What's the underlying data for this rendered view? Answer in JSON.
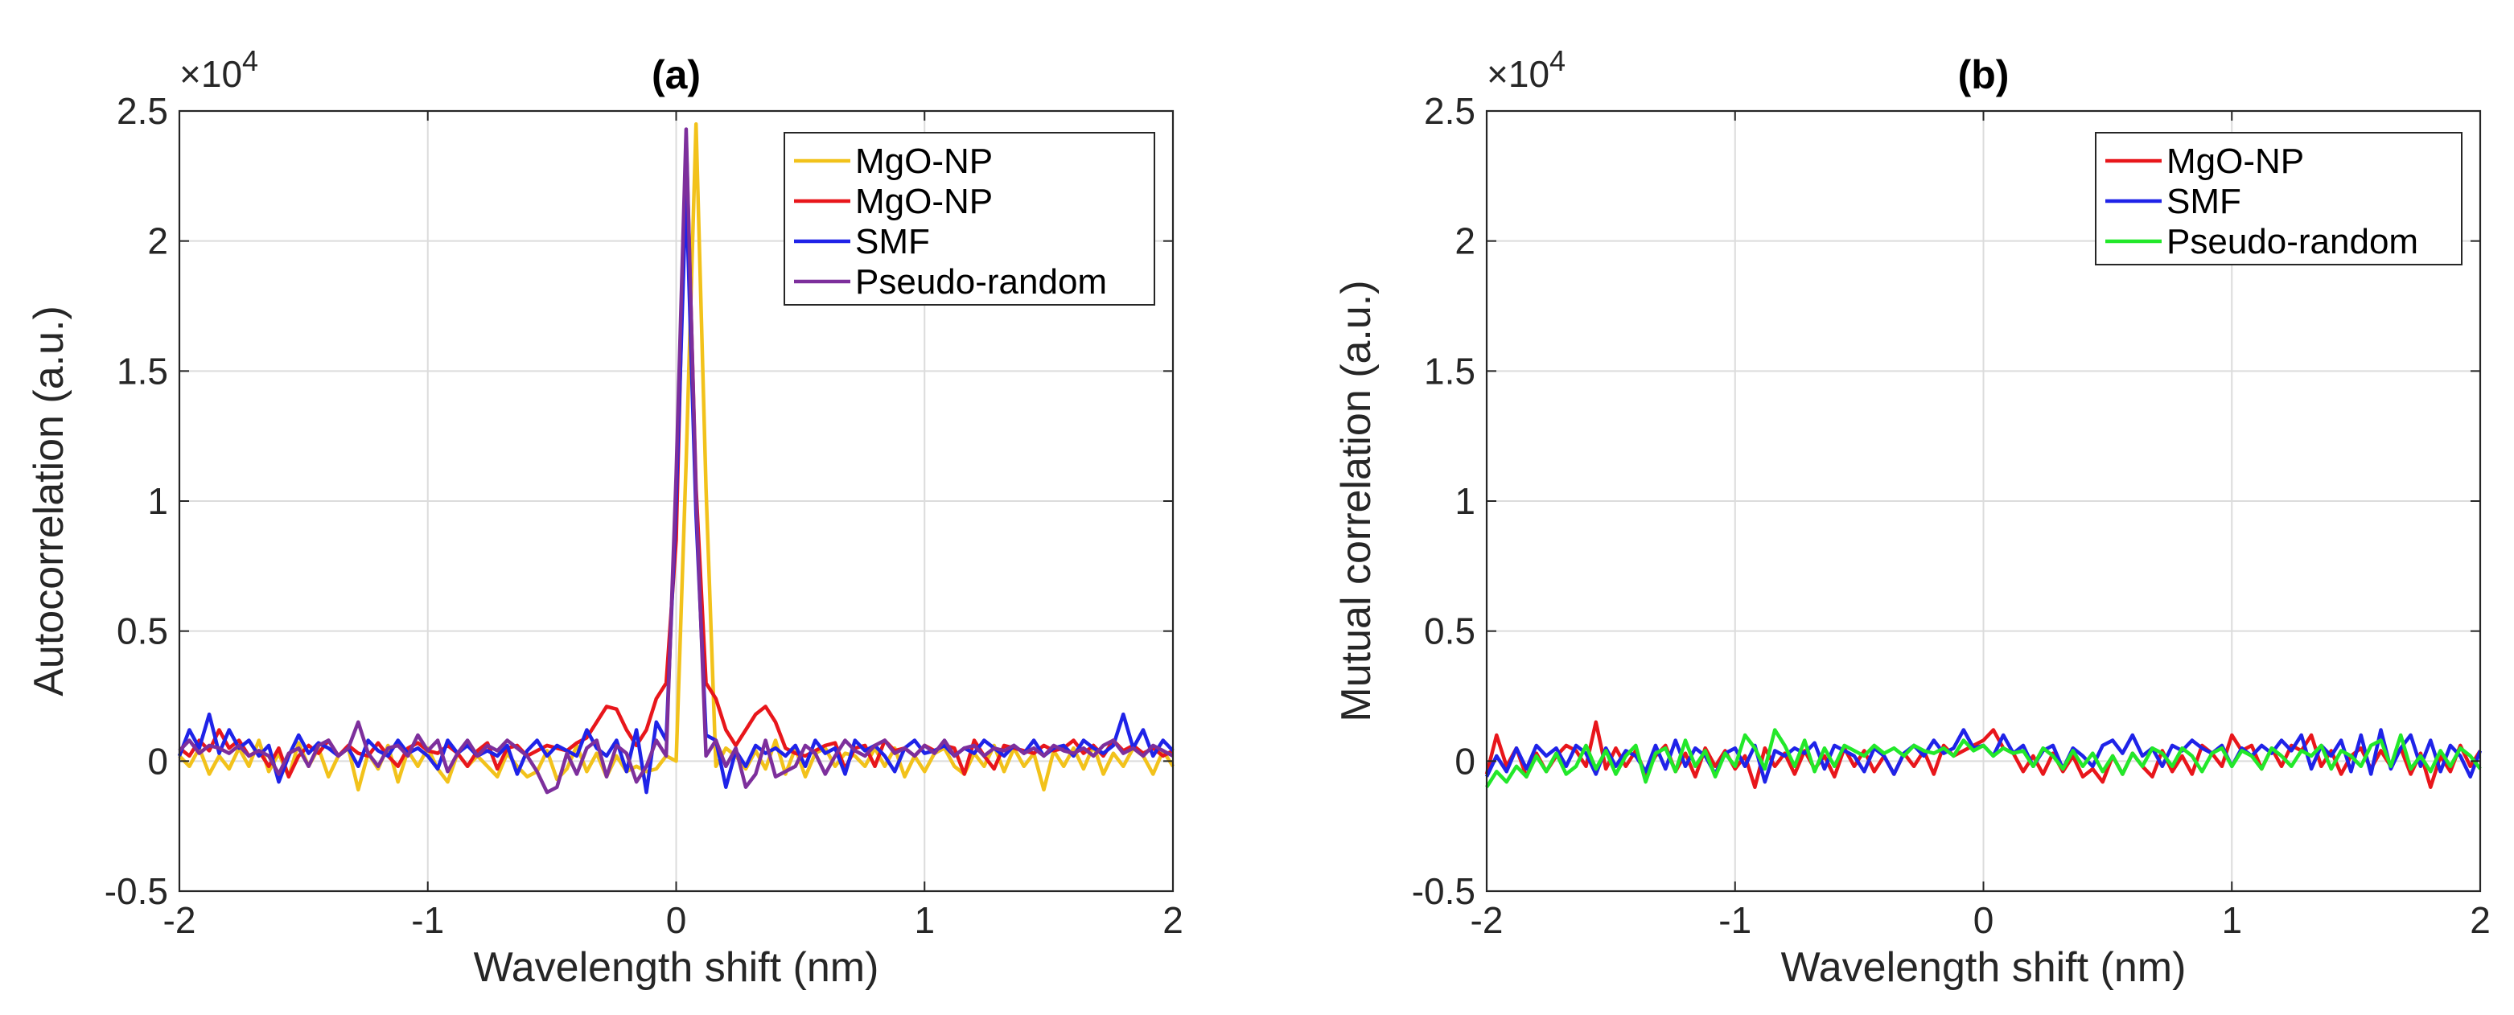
{
  "chart_data": [
    {
      "type": "line",
      "title": "(a)",
      "xlabel": "Wavelength shift (nm)",
      "ylabel": "Autocorrelation (a.u.)",
      "y_multiplier_label": "×10",
      "y_multiplier_exp": "4",
      "xlim": [
        -2,
        2
      ],
      "ylim": [
        -0.5,
        2.5
      ],
      "xticks": [
        "-2",
        "-1",
        "0",
        "1",
        "2"
      ],
      "yticks": [
        "-0.5",
        "0",
        "0.5",
        "1",
        "1.5",
        "2",
        "2.5"
      ],
      "grid": true,
      "legend_position": "top-right",
      "series": [
        {
          "name": "MgO-NP",
          "color": "#f2c21b",
          "x_start": -2,
          "x_step": 0.04,
          "y": [
            0.02,
            -0.02,
            0.05,
            -0.05,
            0.02,
            -0.03,
            0.05,
            -0.02,
            0.08,
            -0.04,
            0.03,
            -0.06,
            0.07,
            -0.02,
            0.05,
            -0.06,
            0.02,
            0.05,
            -0.11,
            0.03,
            -0.03,
            0.06,
            -0.08,
            0.04,
            -0.02,
            0.05,
            -0.03,
            -0.08,
            0.03,
            -0.02,
            0.02,
            -0.02,
            -0.06,
            0.03,
            -0.02,
            -0.06,
            -0.04,
            0.04,
            -0.07,
            -0.03,
            0.06,
            -0.04,
            0.03,
            -0.06,
            0.02,
            -0.04,
            -0.02,
            -0.04,
            -0.03,
            0.02,
            0,
            1.15,
            2.45,
            1.05,
            -0.02,
            0.05,
            0.02,
            -0.03,
            0.04,
            -0.03,
            0.08,
            -0.05,
            0.05,
            -0.06,
            0.03,
            0.05,
            -0.02,
            0.03,
            0.02,
            -0.02,
            0.05,
            -0.02,
            0.05,
            -0.06,
            0.02,
            -0.04,
            0.03,
            0.05,
            -0.02,
            -0.05,
            0.03,
            -0.02,
            0.06,
            -0.04,
            0.05,
            -0.02,
            0.03,
            -0.11,
            0.04,
            -0.02,
            0.05,
            -0.03,
            0.06,
            -0.05,
            0.03,
            -0.02,
            0.05,
            0.02,
            -0.05,
            0.04,
            -0.02
          ]
        },
        {
          "name": "MgO-NP",
          "color": "#e8161b",
          "x_start": -2,
          "x_step": 0.04,
          "y": [
            0.05,
            0.02,
            0.08,
            0.04,
            0.12,
            0.05,
            0.08,
            0.02,
            0.04,
            -0.02,
            0.05,
            -0.06,
            0.02,
            0.06,
            0.03,
            0.08,
            0.02,
            0.06,
            0.03,
            0.02,
            0.07,
            0.02,
            -0.02,
            0.05,
            0.07,
            0.04,
            0.03,
            0.06,
            0.03,
            -0.02,
            0.04,
            0.07,
            -0.03,
            0.05,
            0.06,
            0.02,
            0.04,
            0.06,
            0.05,
            0.04,
            0.07,
            0.09,
            0.15,
            0.21,
            0.2,
            0.12,
            0.06,
            0.12,
            0.24,
            0.3,
            0.85,
            2.4,
            1.05,
            0.3,
            0.24,
            0.12,
            0.06,
            0.12,
            0.18,
            0.21,
            0.15,
            0.05,
            0.03,
            0.02,
            0.04,
            0.06,
            0.07,
            -0.03,
            0.05,
            0.06,
            -0.02,
            0.08,
            0.04,
            0.05,
            0.02,
            0.06,
            0.04,
            0.06,
            0.05,
            -0.05,
            0.08,
            0.02,
            -0.03,
            0.06,
            0.05,
            0.04,
            0.03,
            0.06,
            0.04,
            0.05,
            0.08,
            0.03,
            0.06,
            0.02,
            0.08,
            0.04,
            0.06,
            0.03,
            0.05,
            0.02,
            0.04
          ]
        },
        {
          "name": "SMF",
          "color": "#1f23e8",
          "x_start": -2,
          "x_step": 0.04,
          "y": [
            0.02,
            0.12,
            0.05,
            0.18,
            0.03,
            0.12,
            0.05,
            0.08,
            0.02,
            0.06,
            -0.08,
            0.02,
            0.1,
            0.03,
            0.07,
            0.05,
            0.02,
            0.05,
            -0.02,
            0.08,
            0.04,
            0.02,
            0.08,
            0.03,
            0.05,
            0.02,
            -0.03,
            0.08,
            0.03,
            0.06,
            0.02,
            0.04,
            0.02,
            0.06,
            -0.05,
            0.04,
            0.08,
            0.02,
            0.06,
            0.04,
            0.02,
            0.12,
            0.05,
            0.02,
            0.08,
            -0.04,
            0.12,
            -0.12,
            0.15,
            0.08,
            1.0,
            2.2,
            0.95,
            0.1,
            0.08,
            -0.1,
            0.04,
            -0.02,
            0.06,
            0.03,
            0.05,
            0.02,
            0.06,
            -0.02,
            0.08,
            0.03,
            0.05,
            -0.05,
            0.08,
            0.04,
            0.06,
            0.02,
            -0.04,
            0.05,
            0.08,
            0.03,
            0.04,
            0.06,
            0.02,
            0.05,
            0.03,
            0.08,
            0.05,
            0.02,
            0.06,
            0.03,
            0.08,
            0.02,
            0.05,
            0.06,
            0.02,
            0.08,
            0.05,
            0.03,
            0.06,
            0.18,
            0.05,
            0.12,
            0.02,
            0.08,
            0.04
          ]
        },
        {
          "name": "Pseudo-random",
          "color": "#7d2f9c",
          "x_start": -2,
          "x_step": 0.04,
          "y": [
            0.04,
            0.08,
            0.03,
            0.06,
            0.05,
            0.03,
            0.06,
            0.02,
            0.04,
            0.02,
            -0.05,
            0.03,
            0.05,
            -0.02,
            0.06,
            0.08,
            0.02,
            0.05,
            0.15,
            0.03,
            -0.02,
            0.05,
            0.06,
            0.02,
            0.1,
            0.04,
            0.08,
            -0.04,
            0.03,
            0.08,
            0.02,
            0.06,
            0.04,
            0.08,
            0.05,
            0.02,
            -0.04,
            -0.12,
            -0.1,
            0.03,
            -0.05,
            0.05,
            0.08,
            -0.06,
            0.06,
            0.03,
            -0.08,
            -0.02,
            0.08,
            0.02,
            1.1,
            2.43,
            1.02,
            0.02,
            0.08,
            -0.02,
            0.05,
            -0.1,
            -0.05,
            0.08,
            -0.06,
            -0.04,
            -0.02,
            0.06,
            0.03,
            -0.05,
            0.02,
            0.08,
            0.04,
            0.02,
            0.06,
            0.08,
            0.03,
            0.05,
            0.02,
            0.06,
            0.03,
            0.08,
            0.02,
            0.05,
            0.06,
            0.02,
            0.05,
            0.04,
            0.06,
            0.03,
            0.05,
            0.02,
            0.06,
            0.04,
            0.03,
            0.05,
            0.02,
            0.06,
            0.08,
            0.03,
            0.05,
            0.02,
            0.06,
            0.04,
            0.02
          ]
        }
      ]
    },
    {
      "type": "line",
      "title": "(b)",
      "xlabel": "Wavelength shift (nm)",
      "ylabel": "Mutual correlation (a.u.)",
      "y_multiplier_label": "×10",
      "y_multiplier_exp": "4",
      "xlim": [
        -2,
        2
      ],
      "ylim": [
        -0.5,
        2.5
      ],
      "xticks": [
        "-2",
        "-1",
        "0",
        "1",
        "2"
      ],
      "yticks": [
        "-0.5",
        "0",
        "0.5",
        "1",
        "1.5",
        "2",
        "2.5"
      ],
      "grid": true,
      "legend_position": "top-right",
      "series": [
        {
          "name": "MgO-NP",
          "color": "#e8161b",
          "x_start": -2,
          "x_step": 0.04,
          "y": [
            -0.05,
            0.1,
            -0.02,
            0.05,
            -0.06,
            0.03,
            -0.04,
            0.02,
            0.06,
            0.04,
            -0.02,
            0.15,
            -0.03,
            0.05,
            -0.02,
            0.04,
            -0.05,
            0.02,
            0.06,
            -0.04,
            0.03,
            -0.06,
            0.05,
            -0.02,
            0.04,
            -0.03,
            0.02,
            -0.1,
            0.05,
            -0.02,
            0.03,
            -0.05,
            0.04,
            -0.03,
            0.02,
            -0.06,
            0.05,
            -0.02,
            0.04,
            -0.04,
            0.02,
            -0.05,
            0.03,
            -0.02,
            0.04,
            -0.05,
            0.06,
            0.02,
            0.04,
            0.06,
            0.08,
            0.12,
            0.05,
            0.03,
            -0.04,
            0.02,
            -0.05,
            0.03,
            -0.04,
            0.02,
            -0.06,
            -0.03,
            -0.08,
            0.02,
            -0.05,
            0.03,
            -0.02,
            -0.06,
            0.04,
            -0.04,
            0.02,
            -0.05,
            0.06,
            0.03,
            -0.02,
            0.1,
            0.04,
            0.06,
            -0.03,
            0.05,
            -0.02,
            0.06,
            0.04,
            0.1,
            -0.02,
            0.04,
            -0.05,
            0.02,
            0.05,
            -0.03,
            0.04,
            -0.02,
            0.05,
            -0.05,
            0.03,
            -0.1,
            0.02,
            -0.04,
            0.06,
            -0.02,
            0.04
          ]
        },
        {
          "name": "SMF",
          "color": "#1f23e8",
          "x_start": -2,
          "x_step": 0.04,
          "y": [
            -0.06,
            0.02,
            -0.04,
            0.05,
            -0.03,
            0.06,
            0.02,
            0.05,
            -0.02,
            0.06,
            0.03,
            -0.05,
            0.05,
            -0.02,
            0.04,
            0.02,
            -0.04,
            0.06,
            -0.03,
            0.08,
            -0.02,
            0.05,
            0.02,
            -0.05,
            0.03,
            0.05,
            -0.02,
            0.06,
            -0.08,
            0.04,
            0.02,
            0.05,
            0.03,
            0.07,
            -0.03,
            0.06,
            0.04,
            0.02,
            -0.04,
            0.05,
            0.02,
            -0.05,
            0.03,
            0.06,
            0.02,
            0.08,
            0.03,
            0.05,
            0.12,
            0.05,
            0.06,
            0.02,
            0.1,
            0.03,
            0.06,
            -0.02,
            0.04,
            0.06,
            -0.03,
            0.05,
            0.02,
            -0.02,
            0.06,
            0.08,
            0.03,
            0.1,
            0.02,
            0.05,
            -0.02,
            0.06,
            0.04,
            0.08,
            0.05,
            0.03,
            0.06,
            -0.02,
            0.05,
            0.02,
            0.06,
            0.03,
            0.08,
            0.04,
            0.1,
            -0.03,
            0.06,
            0.02,
            0.08,
            -0.04,
            0.1,
            -0.05,
            0.12,
            -0.03,
            0.05,
            0.1,
            -0.02,
            0.08,
            -0.04,
            0.06,
            0.02,
            -0.06,
            0.04
          ]
        },
        {
          "name": "Pseudo-random",
          "color": "#22e82a",
          "x_start": -2,
          "x_step": 0.04,
          "y": [
            -0.1,
            -0.04,
            -0.08,
            -0.02,
            -0.06,
            0.02,
            -0.04,
            0.03,
            -0.05,
            -0.02,
            0.06,
            -0.03,
            0.04,
            -0.05,
            0.02,
            0.06,
            -0.08,
            0.03,
            0.05,
            -0.04,
            0.08,
            -0.02,
            0.04,
            -0.06,
            0.03,
            -0.02,
            0.1,
            0.05,
            -0.03,
            0.12,
            0.06,
            -0.02,
            0.08,
            -0.04,
            0.05,
            -0.02,
            0.06,
            0.04,
            0.02,
            0.06,
            0.03,
            0.05,
            0.02,
            0.06,
            0.04,
            0.03,
            0.05,
            0.02,
            0.08,
            0.04,
            0.06,
            0.02,
            0.05,
            0.03,
            0.04,
            -0.02,
            0.05,
            0.02,
            -0.03,
            0.04,
            -0.02,
            0.03,
            -0.04,
            0.02,
            -0.05,
            0.03,
            -0.02,
            0.05,
            0.03,
            -0.02,
            0.05,
            0.02,
            -0.04,
            0.03,
            0.05,
            -0.02,
            0.04,
            0.02,
            -0.03,
            0.05,
            0.02,
            -0.02,
            0.04,
            0.02,
            0.06,
            -0.03,
            0.04,
            0.02,
            -0.02,
            0.06,
            0.08,
            -0.02,
            0.1,
            -0.03,
            0.02,
            -0.04,
            0.04,
            -0.02,
            0.05,
            0.02,
            -0.03
          ]
        }
      ]
    }
  ]
}
